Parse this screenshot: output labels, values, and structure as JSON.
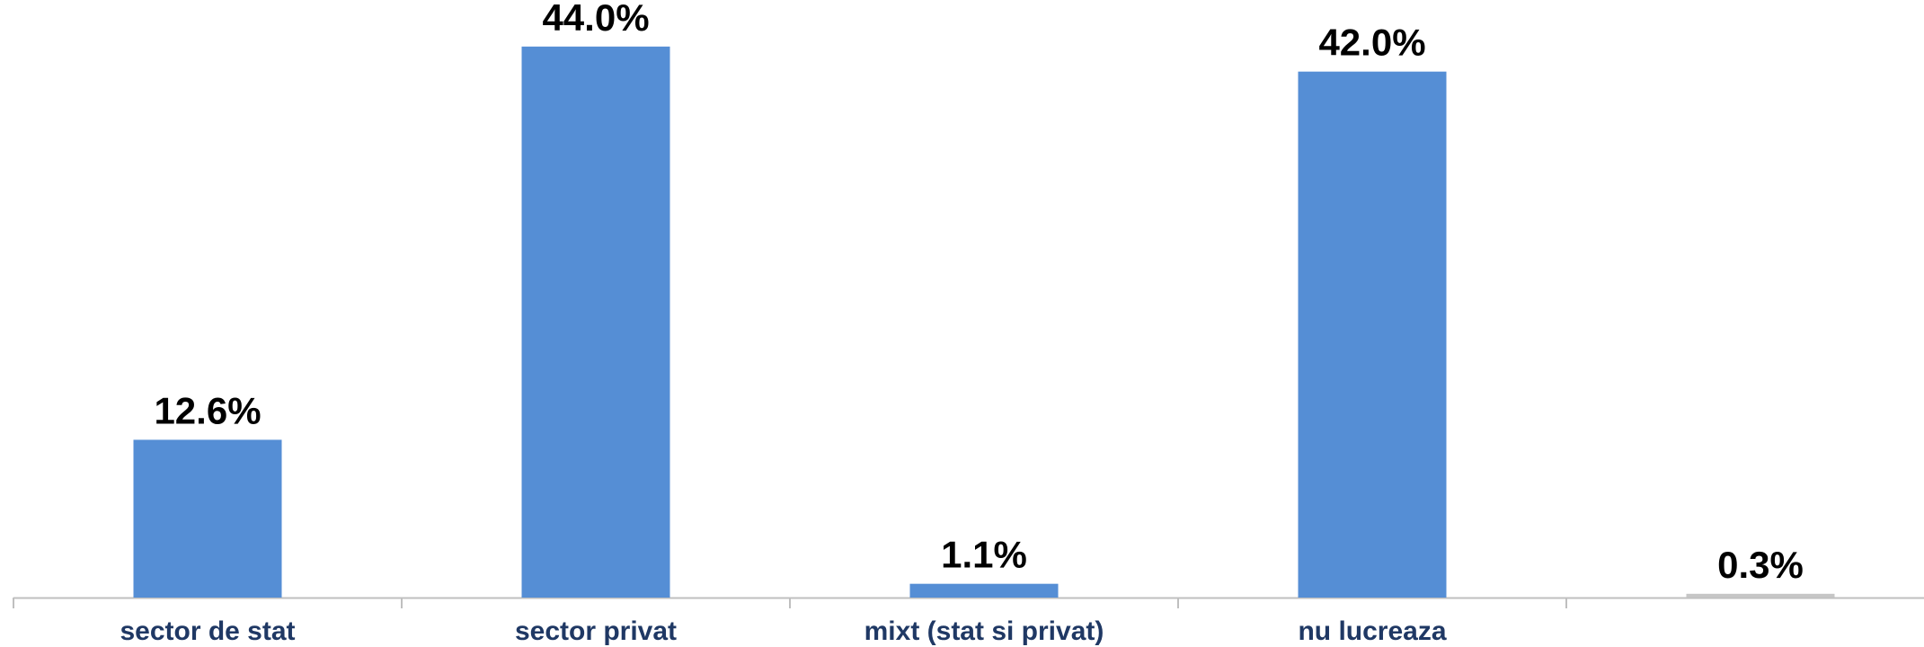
{
  "chart_data": {
    "type": "bar",
    "categories": [
      "sector de stat",
      "sector privat",
      "mixt (stat si privat)",
      "nu lucreaza",
      ""
    ],
    "values": [
      12.6,
      44.0,
      1.1,
      42.0,
      0.3
    ],
    "data_labels": [
      "12.6%",
      "44.0%",
      "1.1%",
      "42.0%",
      "0.3%"
    ],
    "title": "",
    "xlabel": "",
    "ylabel": "",
    "ylim": [
      0,
      47
    ],
    "grid": false,
    "legend": "none",
    "colors": {
      "bar": "#558ed5",
      "last_bar": "#c6c6c6",
      "axis": "#bfbfbf",
      "tick_label": "#1f3864",
      "data_label": "#000000"
    }
  }
}
